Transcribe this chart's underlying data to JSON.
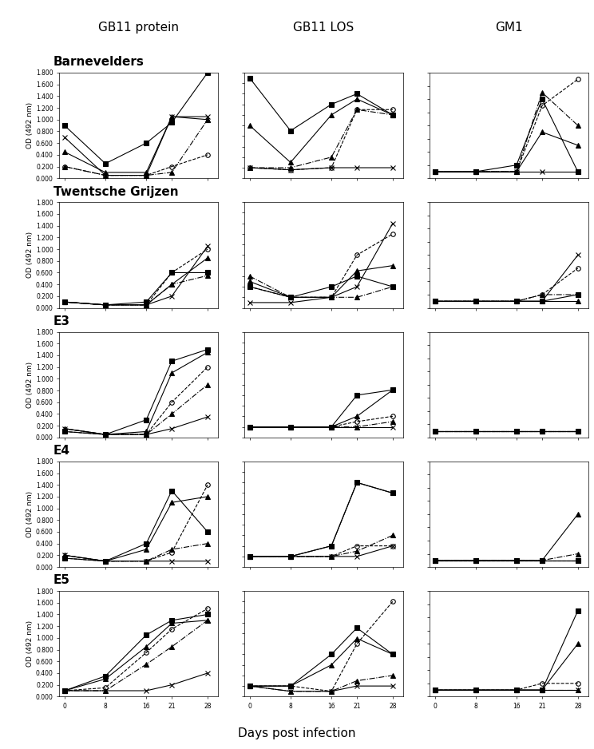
{
  "col_titles": [
    "GB11 protein",
    "GB11 LOS",
    "GM1"
  ],
  "row_labels": [
    "Barnevelders",
    "Twentsche Grijzen",
    "E3",
    "E4",
    "E5"
  ],
  "x": [
    0,
    8,
    16,
    21,
    28
  ],
  "ylabel": "OD (492 nm)",
  "xlabel": "Days post infection",
  "protein_ylim": [
    0,
    1.8
  ],
  "protein_yticks": [
    0.0,
    0.2,
    0.4,
    0.6,
    0.8,
    1.0,
    1.2,
    1.4,
    1.6,
    1.8
  ],
  "los_ylim": [
    0,
    1.0
  ],
  "los_yticks": [
    0.0,
    0.1,
    0.2,
    0.3,
    0.4,
    0.5,
    0.6,
    0.7,
    0.8,
    0.9,
    1.0
  ],
  "gm1_ylim": [
    0,
    0.8
  ],
  "gm1_yticks": [
    0.0,
    0.1,
    0.2,
    0.3,
    0.4,
    0.5,
    0.6,
    0.7,
    0.8
  ],
  "series_styles": [
    {
      "marker": "s",
      "linestyle": "-",
      "color": "black",
      "fillstyle": "full"
    },
    {
      "marker": "^",
      "linestyle": "-",
      "color": "black",
      "fillstyle": "full"
    },
    {
      "marker": "o",
      "linestyle": "--",
      "color": "black",
      "fillstyle": "none"
    },
    {
      "marker": "^",
      "linestyle": "-.",
      "color": "black",
      "fillstyle": "full"
    },
    {
      "marker": "x",
      "linestyle": "-",
      "color": "black",
      "fillstyle": "full"
    },
    {
      "marker": "o",
      "linestyle": "-",
      "color": "black",
      "fillstyle": "full"
    }
  ],
  "data": {
    "Barnevelders": {
      "protein": [
        [
          0.9,
          0.25,
          0.6,
          0.95,
          1.8
        ],
        [
          0.45,
          0.1,
          0.1,
          1.05,
          1.0
        ],
        [
          0.2,
          0.05,
          0.05,
          0.2,
          0.4
        ],
        [
          0.2,
          0.05,
          0.05,
          0.1,
          1.0
        ],
        [
          0.7,
          0.05,
          0.05,
          1.05,
          1.05
        ]
      ],
      "los": [
        [
          0.95,
          0.45,
          0.7,
          0.8,
          0.6
        ],
        [
          0.5,
          0.15,
          0.6,
          0.75,
          0.6
        ],
        [
          0.1,
          0.08,
          0.1,
          0.65,
          0.65
        ],
        [
          0.1,
          0.1,
          0.2,
          0.65,
          0.6
        ],
        [
          0.1,
          0.08,
          0.1,
          0.1,
          0.1
        ]
      ],
      "gm1": [
        [
          0.05,
          0.05,
          0.1,
          0.6,
          0.05
        ],
        [
          0.05,
          0.05,
          0.05,
          0.35,
          0.25
        ],
        [
          0.05,
          0.05,
          0.05,
          0.55,
          0.75
        ],
        [
          0.05,
          0.05,
          0.05,
          0.65,
          0.4
        ],
        [
          0.05,
          0.05,
          0.05,
          0.05,
          0.05
        ]
      ]
    },
    "Twentsche Grijzen": {
      "protein": [
        [
          0.1,
          0.05,
          0.1,
          0.6,
          0.6
        ],
        [
          0.1,
          0.05,
          0.05,
          0.4,
          0.85
        ],
        [
          0.1,
          0.05,
          0.05,
          0.6,
          1.0
        ],
        [
          0.1,
          0.05,
          0.05,
          0.4,
          0.55
        ],
        [
          0.1,
          0.05,
          0.05,
          0.2,
          1.05
        ]
      ],
      "los": [
        [
          0.2,
          0.1,
          0.2,
          0.3,
          0.2
        ],
        [
          0.25,
          0.1,
          0.1,
          0.35,
          0.4
        ],
        [
          0.2,
          0.1,
          0.1,
          0.5,
          0.7
        ],
        [
          0.3,
          0.1,
          0.1,
          0.1,
          0.2
        ],
        [
          0.05,
          0.05,
          0.1,
          0.2,
          0.8
        ]
      ],
      "gm1": [
        [
          0.05,
          0.05,
          0.05,
          0.05,
          0.1
        ],
        [
          0.05,
          0.05,
          0.05,
          0.05,
          0.05
        ],
        [
          0.05,
          0.05,
          0.05,
          0.1,
          0.3
        ],
        [
          0.05,
          0.05,
          0.05,
          0.1,
          0.1
        ],
        [
          0.05,
          0.05,
          0.05,
          0.05,
          0.4
        ]
      ]
    },
    "E3": {
      "protein": [
        [
          0.1,
          0.05,
          0.3,
          1.3,
          1.5
        ],
        [
          0.15,
          0.05,
          0.1,
          1.1,
          1.45
        ],
        [
          0.1,
          0.05,
          0.05,
          0.6,
          1.2
        ],
        [
          0.15,
          0.05,
          0.05,
          0.4,
          0.9
        ],
        [
          0.15,
          0.05,
          0.05,
          0.15,
          0.35
        ]
      ],
      "los": [
        [
          0.1,
          0.1,
          0.1,
          0.4,
          0.45
        ],
        [
          0.1,
          0.1,
          0.1,
          0.2,
          0.45
        ],
        [
          0.1,
          0.1,
          0.1,
          0.15,
          0.2
        ],
        [
          0.1,
          0.1,
          0.1,
          0.1,
          0.15
        ],
        [
          0.1,
          0.1,
          0.1,
          0.1,
          0.1
        ]
      ],
      "gm1": [
        [
          0.05,
          0.05,
          0.05,
          0.05,
          0.05
        ],
        [
          0.05,
          0.05,
          0.05,
          0.05,
          0.05
        ],
        [
          0.05,
          0.05,
          0.05,
          0.05,
          0.05
        ],
        [
          0.05,
          0.05,
          0.05,
          0.05,
          0.05
        ],
        [
          0.05,
          0.05,
          0.05,
          0.05,
          0.05
        ]
      ]
    },
    "E4": {
      "protein": [
        [
          0.15,
          0.1,
          0.4,
          1.3,
          0.6
        ],
        [
          0.2,
          0.1,
          0.3,
          1.1,
          1.2
        ],
        [
          0.15,
          0.1,
          0.1,
          0.25,
          1.4
        ],
        [
          0.2,
          0.1,
          0.1,
          0.3,
          0.4
        ],
        [
          0.2,
          0.1,
          0.1,
          0.1,
          0.1
        ]
      ],
      "los": [
        [
          0.1,
          0.1,
          0.2,
          0.8,
          0.7
        ],
        [
          0.1,
          0.1,
          0.2,
          0.8,
          0.7
        ],
        [
          0.1,
          0.1,
          0.1,
          0.2,
          0.2
        ],
        [
          0.1,
          0.1,
          0.1,
          0.15,
          0.3
        ],
        [
          0.1,
          0.1,
          0.1,
          0.1,
          0.2
        ]
      ],
      "gm1": [
        [
          0.05,
          0.05,
          0.05,
          0.05,
          0.05
        ],
        [
          0.05,
          0.05,
          0.05,
          0.05,
          0.4
        ],
        [
          0.05,
          0.05,
          0.05,
          0.05,
          0.05
        ],
        [
          0.05,
          0.05,
          0.05,
          0.05,
          0.1
        ],
        [
          0.05,
          0.05,
          0.05,
          0.05,
          0.05
        ]
      ]
    },
    "E5": {
      "protein": [
        [
          0.1,
          0.35,
          1.05,
          1.3,
          1.4
        ],
        [
          0.1,
          0.3,
          0.85,
          1.25,
          1.3
        ],
        [
          0.1,
          0.15,
          0.75,
          1.15,
          1.5
        ],
        [
          0.1,
          0.1,
          0.55,
          0.85,
          1.3
        ],
        [
          0.1,
          0.1,
          0.1,
          0.2,
          0.4
        ]
      ],
      "los": [
        [
          0.1,
          0.1,
          0.4,
          0.65,
          0.4
        ],
        [
          0.1,
          0.1,
          0.3,
          0.55,
          0.4
        ],
        [
          0.1,
          0.1,
          0.05,
          0.5,
          0.9
        ],
        [
          0.1,
          0.05,
          0.05,
          0.15,
          0.2
        ],
        [
          0.1,
          0.05,
          0.05,
          0.1,
          0.1
        ]
      ],
      "gm1": [
        [
          0.05,
          0.05,
          0.05,
          0.05,
          0.65
        ],
        [
          0.05,
          0.05,
          0.05,
          0.05,
          0.4
        ],
        [
          0.05,
          0.05,
          0.05,
          0.1,
          0.1
        ],
        [
          0.05,
          0.05,
          0.05,
          0.05,
          0.05
        ],
        [
          0.05,
          0.05,
          0.05,
          0.05,
          0.05
        ]
      ]
    }
  }
}
